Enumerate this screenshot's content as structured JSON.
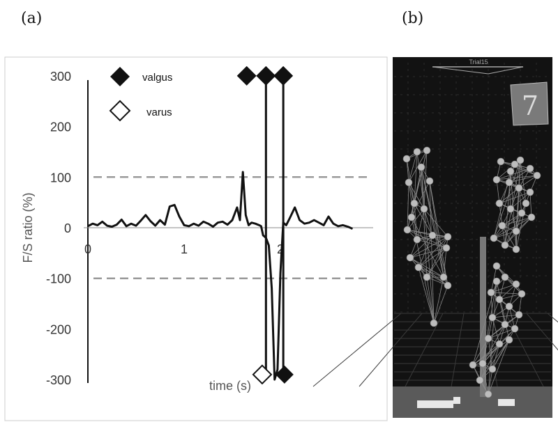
{
  "panel_labels": {
    "a": "(a)",
    "b": "(b)"
  },
  "chart_data": {
    "type": "line",
    "ylabel": "F/S ratio (%)",
    "xlabel": "time (s)",
    "xlim": [
      0,
      2.8
    ],
    "ylim": [
      -300,
      300
    ],
    "x_ticks": [
      0,
      1,
      2
    ],
    "x_tick_labels": [
      "0",
      "1",
      "2"
    ],
    "y_ticks": [
      300,
      200,
      100,
      0,
      -100,
      -200,
      -300
    ],
    "y_tick_labels": [
      "300",
      "200",
      "100",
      "0",
      "-100",
      "-200",
      "-300"
    ],
    "threshold_lines": [
      100,
      -100
    ],
    "legend": [
      {
        "label": "valgus",
        "marker": "filled-diamond"
      },
      {
        "label": "varus",
        "marker": "open-diamond"
      }
    ],
    "series": [
      {
        "x": [
          0,
          0.05,
          0.1,
          0.15,
          0.2,
          0.25,
          0.3,
          0.35,
          0.4,
          0.45,
          0.5,
          0.55,
          0.6,
          0.65,
          0.7,
          0.75,
          0.8,
          0.85,
          0.9,
          0.95,
          1.0,
          1.05,
          1.1,
          1.15,
          1.2,
          1.25,
          1.3,
          1.35,
          1.4,
          1.45,
          1.5,
          1.55,
          1.58,
          1.61,
          1.64,
          1.67,
          1.7,
          1.74,
          1.78,
          1.8,
          1.82,
          1.85,
          1.88,
          1.91,
          1.94,
          1.97,
          2.0,
          2.03,
          2.06,
          2.1,
          2.15,
          2.2,
          2.25,
          2.3,
          2.35,
          2.4,
          2.45,
          2.5,
          2.55,
          2.6,
          2.65,
          2.7,
          2.75
        ],
        "y": [
          3,
          8,
          5,
          12,
          4,
          2,
          6,
          16,
          3,
          8,
          4,
          14,
          25,
          13,
          4,
          15,
          6,
          42,
          45,
          22,
          5,
          3,
          8,
          4,
          12,
          8,
          2,
          10,
          12,
          6,
          15,
          40,
          15,
          110,
          25,
          5,
          10,
          8,
          5,
          3,
          -15,
          -20,
          -35,
          -120,
          -300,
          -280,
          -90,
          10,
          5,
          20,
          40,
          15,
          8,
          10,
          15,
          10,
          5,
          22,
          8,
          3,
          5,
          2,
          -2
        ]
      }
    ],
    "valgus_events": [
      1.65,
      1.85,
      2.03
    ],
    "varus_events": [
      1.84
    ],
    "valgus_bottom_events": [
      1.97
    ],
    "colors": {
      "line": "#111111",
      "threshold": "#999999",
      "scene_bg": "#121212"
    }
  },
  "scene": {
    "header_text": "Trial15",
    "counter": "7"
  }
}
